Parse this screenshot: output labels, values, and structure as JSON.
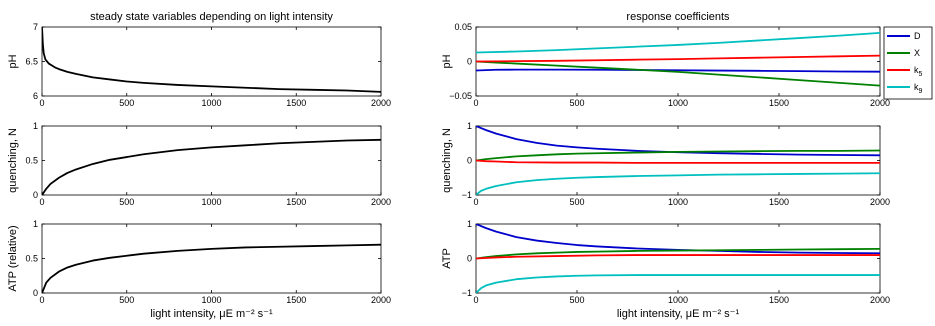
{
  "colors": {
    "D": "#0000cc",
    "X": "#008000",
    "k5": "#ff0000",
    "k9": "#00bfbf",
    "state": "#000000"
  },
  "chart_data": [
    {
      "type": "line",
      "id": "left-ph",
      "title": "steady state variables depending on light intensity",
      "xlabel": "",
      "ylabel": "pH",
      "xlim": [
        0,
        2000
      ],
      "ylim": [
        6,
        7
      ],
      "xticks": [
        0,
        500,
        1000,
        1500,
        2000
      ],
      "yticks": [
        6,
        6.5,
        7
      ],
      "yticklabels": [
        "6",
        "6.5",
        "7"
      ],
      "series": [
        {
          "color_key": "state",
          "x": [
            0,
            5,
            10,
            20,
            40,
            60,
            80,
            100,
            150,
            200,
            300,
            400,
            500,
            600,
            800,
            1000,
            1200,
            1400,
            1600,
            1800,
            2000
          ],
          "y": [
            7.0,
            6.75,
            6.62,
            6.53,
            6.47,
            6.44,
            6.41,
            6.39,
            6.35,
            6.32,
            6.27,
            6.24,
            6.21,
            6.19,
            6.16,
            6.14,
            6.12,
            6.1,
            6.09,
            6.08,
            6.06
          ]
        }
      ]
    },
    {
      "type": "line",
      "id": "left-quenching",
      "title": "",
      "xlabel": "",
      "ylabel": "quenching, N",
      "xlim": [
        0,
        2000
      ],
      "ylim": [
        0,
        1
      ],
      "xticks": [
        0,
        500,
        1000,
        1500,
        2000
      ],
      "yticks": [
        0,
        0.5,
        1
      ],
      "yticklabels": [
        "0",
        "0.5",
        "1"
      ],
      "series": [
        {
          "color_key": "state",
          "x": [
            0,
            25,
            50,
            100,
            150,
            200,
            300,
            400,
            500,
            600,
            800,
            1000,
            1200,
            1400,
            1600,
            1800,
            2000
          ],
          "y": [
            0.0,
            0.09,
            0.16,
            0.25,
            0.32,
            0.37,
            0.45,
            0.51,
            0.55,
            0.59,
            0.65,
            0.69,
            0.72,
            0.75,
            0.77,
            0.79,
            0.8
          ]
        }
      ]
    },
    {
      "type": "line",
      "id": "left-atp",
      "title": "",
      "xlabel": "light intensity, μE m⁻² s⁻¹",
      "ylabel": "ATP (relative)",
      "xlim": [
        0,
        2000
      ],
      "ylim": [
        0,
        1
      ],
      "xticks": [
        0,
        500,
        1000,
        1500,
        2000
      ],
      "yticks": [
        0,
        0.5,
        1
      ],
      "yticklabels": [
        "0",
        "0.5",
        "1"
      ],
      "series": [
        {
          "color_key": "state",
          "x": [
            0,
            25,
            50,
            100,
            150,
            200,
            300,
            400,
            500,
            600,
            800,
            1000,
            1200,
            1400,
            1600,
            1800,
            2000
          ],
          "y": [
            0.0,
            0.15,
            0.22,
            0.31,
            0.37,
            0.41,
            0.47,
            0.51,
            0.54,
            0.57,
            0.61,
            0.64,
            0.66,
            0.67,
            0.68,
            0.69,
            0.7
          ]
        }
      ]
    },
    {
      "type": "line",
      "id": "right-ph",
      "title": "response coefficients",
      "xlabel": "",
      "ylabel": "pH",
      "xlim": [
        0,
        2000
      ],
      "ylim": [
        -0.05,
        0.05
      ],
      "xticks": [
        0,
        500,
        1000,
        1500,
        2000
      ],
      "yticks": [
        -0.05,
        0,
        0.05
      ],
      "yticklabels": [
        "−0.05",
        "0",
        "0.05"
      ],
      "series": [
        {
          "name": "D",
          "color_key": "D",
          "x": [
            0,
            100,
            200,
            400,
            600,
            800,
            1000,
            1200,
            1400,
            1600,
            1800,
            2000
          ],
          "y": [
            -0.013,
            -0.012,
            -0.0118,
            -0.0118,
            -0.012,
            -0.0123,
            -0.0127,
            -0.0131,
            -0.0135,
            -0.014,
            -0.0145,
            -0.0148
          ]
        },
        {
          "name": "X",
          "color_key": "X",
          "x": [
            0,
            100,
            200,
            400,
            600,
            800,
            1000,
            1200,
            1400,
            1600,
            1800,
            2000
          ],
          "y": [
            0.0,
            -0.0015,
            -0.003,
            -0.006,
            -0.009,
            -0.012,
            -0.015,
            -0.019,
            -0.023,
            -0.027,
            -0.031,
            -0.035
          ]
        },
        {
          "name": "k5",
          "color_key": "k5",
          "x": [
            0,
            200,
            400,
            600,
            800,
            1000,
            1200,
            1400,
            1600,
            1800,
            2000
          ],
          "y": [
            0.0,
            0.0005,
            0.001,
            0.0018,
            0.0027,
            0.0035,
            0.0045,
            0.0055,
            0.0065,
            0.0075,
            0.0085
          ]
        },
        {
          "name": "k9",
          "color_key": "k9",
          "x": [
            0,
            200,
            400,
            600,
            800,
            1000,
            1200,
            1400,
            1600,
            1800,
            2000
          ],
          "y": [
            0.013,
            0.0145,
            0.0165,
            0.019,
            0.0215,
            0.024,
            0.027,
            0.0305,
            0.034,
            0.0375,
            0.0415
          ]
        }
      ],
      "legend": {
        "position": "outside-right",
        "entries": [
          "D",
          "X",
          "k5",
          "k9"
        ]
      }
    },
    {
      "type": "line",
      "id": "right-quenching",
      "title": "",
      "xlabel": "",
      "ylabel": "quenching, N",
      "xlim": [
        0,
        2000
      ],
      "ylim": [
        -1,
        1
      ],
      "xticks": [
        0,
        500,
        1000,
        1500,
        2000
      ],
      "yticks": [
        -1,
        0,
        1
      ],
      "yticklabels": [
        "−1",
        "0",
        "1"
      ],
      "series": [
        {
          "name": "D",
          "color_key": "D",
          "x": [
            0,
            50,
            100,
            200,
            300,
            400,
            500,
            600,
            800,
            1000,
            1200,
            1400,
            1600,
            1800,
            2000
          ],
          "y": [
            1.0,
            0.88,
            0.78,
            0.62,
            0.51,
            0.43,
            0.38,
            0.34,
            0.28,
            0.24,
            0.21,
            0.19,
            0.17,
            0.16,
            0.15
          ]
        },
        {
          "name": "X",
          "color_key": "X",
          "x": [
            0,
            50,
            100,
            200,
            300,
            400,
            500,
            600,
            800,
            1000,
            1200,
            1400,
            1600,
            1800,
            2000
          ],
          "y": [
            0.0,
            0.04,
            0.07,
            0.12,
            0.15,
            0.18,
            0.2,
            0.21,
            0.23,
            0.25,
            0.26,
            0.27,
            0.28,
            0.28,
            0.29
          ]
        },
        {
          "name": "k5",
          "color_key": "k5",
          "x": [
            0,
            50,
            100,
            200,
            400,
            600,
            800,
            1000,
            1200,
            1400,
            1600,
            1800,
            2000
          ],
          "y": [
            0.0,
            -0.02,
            -0.03,
            -0.05,
            -0.06,
            -0.06,
            -0.07,
            -0.07,
            -0.07,
            -0.07,
            -0.07,
            -0.07,
            -0.07
          ]
        },
        {
          "name": "k9",
          "color_key": "k9",
          "x": [
            0,
            25,
            50,
            100,
            200,
            300,
            400,
            500,
            600,
            800,
            1000,
            1200,
            1400,
            1600,
            1800,
            2000
          ],
          "y": [
            -1.0,
            -0.88,
            -0.82,
            -0.74,
            -0.63,
            -0.57,
            -0.53,
            -0.5,
            -0.48,
            -0.45,
            -0.43,
            -0.41,
            -0.4,
            -0.39,
            -0.38,
            -0.37
          ]
        }
      ]
    },
    {
      "type": "line",
      "id": "right-atp",
      "title": "",
      "xlabel": "light intensity, μE m⁻² s⁻¹",
      "ylabel": "ATP",
      "xlim": [
        0,
        2000
      ],
      "ylim": [
        -1,
        1
      ],
      "xticks": [
        0,
        500,
        1000,
        1500,
        2000
      ],
      "yticks": [
        -1,
        0,
        1
      ],
      "yticklabels": [
        "−1",
        "0",
        "1"
      ],
      "series": [
        {
          "name": "D",
          "color_key": "D",
          "x": [
            0,
            50,
            100,
            200,
            300,
            400,
            500,
            600,
            800,
            1000,
            1200,
            1400,
            1600,
            1800,
            2000
          ],
          "y": [
            1.0,
            0.88,
            0.78,
            0.62,
            0.52,
            0.45,
            0.39,
            0.35,
            0.29,
            0.25,
            0.22,
            0.19,
            0.17,
            0.16,
            0.15
          ]
        },
        {
          "name": "X",
          "color_key": "X",
          "x": [
            0,
            50,
            100,
            200,
            300,
            400,
            500,
            600,
            800,
            1000,
            1200,
            1400,
            1600,
            1800,
            2000
          ],
          "y": [
            0.0,
            0.04,
            0.07,
            0.12,
            0.15,
            0.17,
            0.19,
            0.2,
            0.22,
            0.23,
            0.24,
            0.25,
            0.26,
            0.27,
            0.28
          ]
        },
        {
          "name": "k5",
          "color_key": "k5",
          "x": [
            0,
            100,
            200,
            400,
            600,
            800,
            1000,
            1200,
            1400,
            1600,
            1800,
            2000
          ],
          "y": [
            0.0,
            0.03,
            0.05,
            0.07,
            0.09,
            0.1,
            0.1,
            0.1,
            0.1,
            0.1,
            0.1,
            0.1
          ]
        },
        {
          "name": "k9",
          "color_key": "k9",
          "x": [
            0,
            25,
            50,
            100,
            200,
            300,
            400,
            500,
            600,
            800,
            1000,
            1200,
            1400,
            1600,
            1800,
            2000
          ],
          "y": [
            -1.0,
            -0.86,
            -0.78,
            -0.7,
            -0.6,
            -0.55,
            -0.52,
            -0.5,
            -0.49,
            -0.48,
            -0.48,
            -0.48,
            -0.48,
            -0.48,
            -0.48,
            -0.48
          ]
        }
      ]
    }
  ]
}
